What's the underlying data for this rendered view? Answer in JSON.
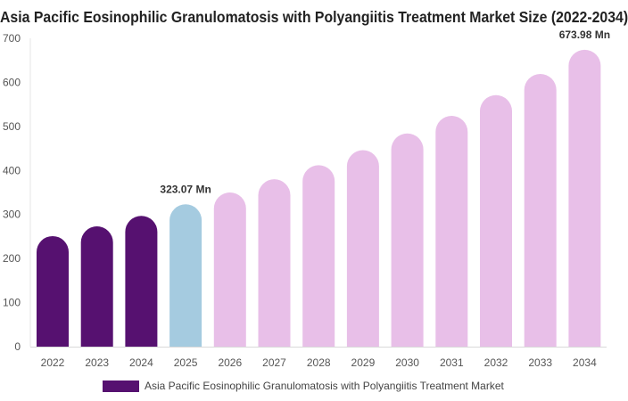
{
  "chart_data": {
    "type": "bar",
    "title": "Asia Pacific Eosinophilic Granulomatosis with Polyangiitis Treatment Market Size (2022-2034)",
    "xlabel": "",
    "ylabel": "",
    "categories": [
      "2022",
      "2023",
      "2024",
      "2025",
      "2026",
      "2027",
      "2028",
      "2029",
      "2030",
      "2031",
      "2032",
      "2033",
      "2034"
    ],
    "series": [
      {
        "name": "Asia Pacific Eosinophilic Granulomatosis with Polyangiitis Treatment Market",
        "values": [
          251,
          273,
          297,
          323.07,
          350,
          380,
          412,
          446,
          484,
          524,
          571,
          619,
          673.98
        ]
      }
    ],
    "ylim": [
      0,
      700
    ],
    "yticks": [
      0,
      100,
      200,
      300,
      400,
      500,
      600,
      700
    ],
    "data_labels": [
      {
        "index": 3,
        "text": "323.07 Mn"
      },
      {
        "index": 12,
        "text": "673.98 Mn"
      }
    ],
    "bar_colors": {
      "historical": "#561170",
      "current": "#a5cbe0",
      "forecast": "#e8bfe8"
    },
    "historical_count": 3,
    "current_index": 3,
    "grid": false,
    "legend_position": "bottom"
  }
}
